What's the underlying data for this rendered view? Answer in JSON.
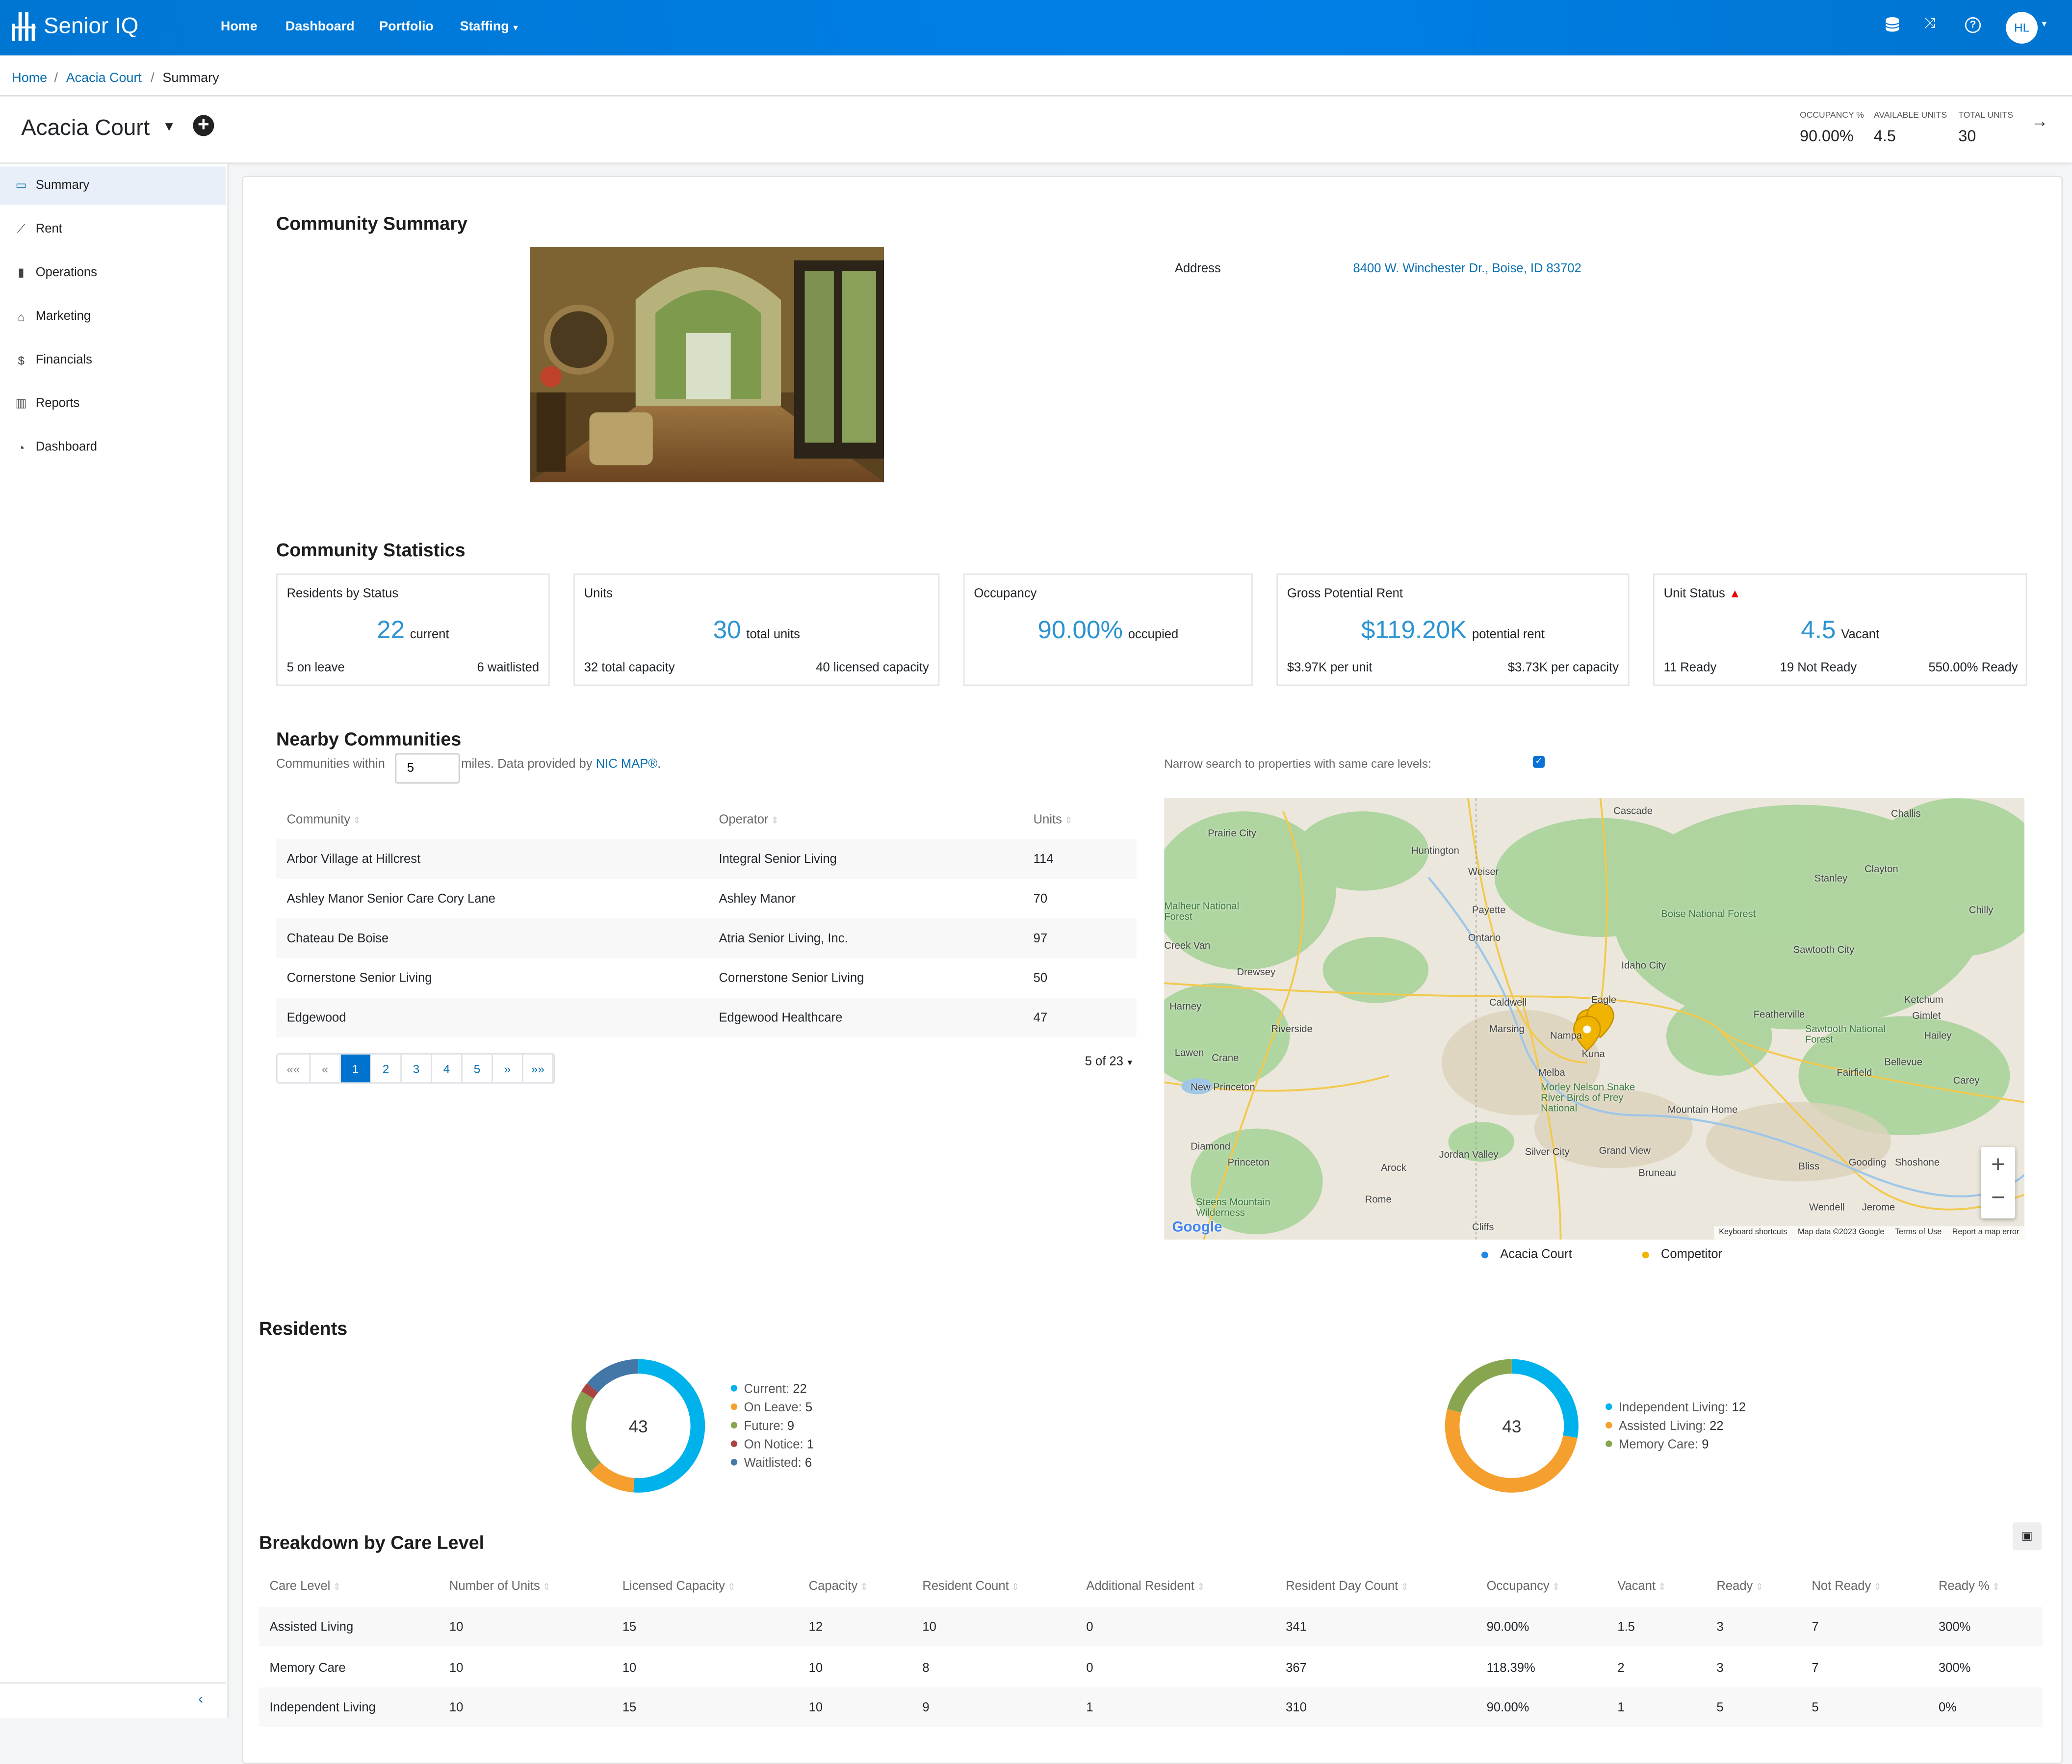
{
  "nav": {
    "brand": "Senior IQ",
    "links": [
      "Home",
      "Dashboard",
      "Portfolio",
      "Staffing"
    ],
    "user_initials": "HL",
    "color": "#0077d4"
  },
  "breadcrumb": [
    "Home",
    "Acacia Court",
    "Summary"
  ],
  "header": {
    "title": "Acacia Court",
    "kpis": [
      {
        "label": "OCCUPANCY %",
        "value": "90.00%"
      },
      {
        "label": "AVAILABLE UNITS",
        "value": "4.5"
      },
      {
        "label": "TOTAL UNITS",
        "value": "30"
      }
    ]
  },
  "sidebar": {
    "items": [
      {
        "label": "Summary",
        "icon": "id-card-icon"
      },
      {
        "label": "Rent",
        "icon": "line-chart-icon"
      },
      {
        "label": "Operations",
        "icon": "clipboard-icon"
      },
      {
        "label": "Marketing",
        "icon": "basket-icon"
      },
      {
        "label": "Financials",
        "icon": "dollar-icon"
      },
      {
        "label": "Reports",
        "icon": "bar-chart-icon"
      },
      {
        "label": "Dashboard",
        "icon": "gauge-icon"
      }
    ],
    "active": "Summary"
  },
  "summary": {
    "title": "Community Summary",
    "address_label": "Address",
    "address": "8400 W. Winchester Dr., Boise, ID 83702"
  },
  "statistics": {
    "title": "Community Statistics",
    "cards": [
      {
        "title": "Residents by Status",
        "value": "22",
        "unit": "current",
        "bottom": [
          "5 on leave",
          "6 waitlisted"
        ]
      },
      {
        "title": "Units",
        "value": "30",
        "unit": "total units",
        "bottom": [
          "32 total capacity",
          "40 licensed capacity"
        ]
      },
      {
        "title": "Occupancy",
        "value": "90.00%",
        "unit": "occupied",
        "bottom": []
      },
      {
        "title": "Gross Potential Rent",
        "value": "$119.20K",
        "unit": "potential rent",
        "bottom": [
          "$3.97K per unit",
          "$3.73K per capacity"
        ]
      },
      {
        "title": "Unit Status",
        "value": "4.5",
        "unit": "Vacant",
        "bottom": [
          "11 Ready",
          "19 Not Ready",
          "550.00% Ready"
        ],
        "warning": true
      }
    ]
  },
  "nearby": {
    "title": "Nearby Communities",
    "within_prefix": "Communities within",
    "radius": "5",
    "within_suffix": "miles. Data provided by",
    "provider": "NIC MAP®",
    "narrow_label": "Narrow search to properties with same care levels:",
    "narrow_checked": true,
    "columns": [
      "Community",
      "Operator",
      "Units"
    ],
    "rows": [
      [
        "Arbor Village at Hillcrest",
        "Integral Senior Living",
        "114"
      ],
      [
        "Ashley Manor Senior Care Cory Lane",
        "Ashley Manor",
        "70"
      ],
      [
        "Chateau De Boise",
        "Atria Senior Living, Inc.",
        "97"
      ],
      [
        "Cornerstone Senior Living",
        "Cornerstone Senior Living",
        "50"
      ],
      [
        "Edgewood",
        "Edgewood Healthcare",
        "47"
      ]
    ],
    "pagination": {
      "pages": [
        "««",
        "«",
        "1",
        "2",
        "3",
        "4",
        "5",
        "»",
        "»»"
      ],
      "current": "1",
      "page_size": "5 of 23"
    },
    "map": {
      "labels": [
        "Cascade",
        "Challis",
        "Prairie City",
        "Huntington",
        "Weiser",
        "Payette",
        "Ontario",
        "Malheur National Forest",
        "Creek Van",
        "Drewsey",
        "Harney",
        "Riverside",
        "Lawen",
        "Crane",
        "New Princeton",
        "Diamond",
        "Princeton",
        "Steens Mountain Wilderness",
        "Arock",
        "Rome",
        "Jordan Valley",
        "Silver City",
        "Grand View",
        "Bruneau",
        "Mountain Home",
        "Melba",
        "Marsing",
        "Caldwell",
        "Nampa",
        "Kuna",
        "Eagle",
        "Morley Nelson Snake River Birds of Prey National",
        "Idaho City",
        "Boise National Forest",
        "Stanley",
        "Clayton",
        "Chilly",
        "Sawtooth City",
        "Featherville",
        "Ketchum",
        "Gimlet",
        "Hailey",
        "Bellevue",
        "Carey",
        "Fairfield",
        "Sawtooth National Forest",
        "Bliss",
        "Gooding",
        "Shoshone",
        "Wendell",
        "Jerome",
        "Cliffs"
      ],
      "footer": [
        "Keyboard shortcuts",
        "Map data ©2023 Google",
        "Terms of Use",
        "Report a map error"
      ],
      "legend": [
        {
          "label": "Acacia Court",
          "color": "#1e88e5"
        },
        {
          "label": "Competitor",
          "color": "#f0b400"
        }
      ]
    }
  },
  "residents": {
    "title": "Residents",
    "chart_data": [
      {
        "type": "pie",
        "total": "43",
        "series": [
          {
            "name": "Current",
            "value": 22,
            "color": "#00b2ec"
          },
          {
            "name": "On Leave",
            "value": 5,
            "color": "#f5a02e"
          },
          {
            "name": "Future",
            "value": 9,
            "color": "#88a550"
          },
          {
            "name": "On Notice",
            "value": 1,
            "color": "#a94442"
          },
          {
            "name": "Waitlisted",
            "value": 6,
            "color": "#4277a7"
          }
        ]
      },
      {
        "type": "pie",
        "total": "43",
        "series": [
          {
            "name": "Independent Living",
            "value": 12,
            "color": "#00b2ec"
          },
          {
            "name": "Assisted Living",
            "value": 22,
            "color": "#f5a02e"
          },
          {
            "name": "Memory Care",
            "value": 9,
            "color": "#88a550"
          }
        ]
      }
    ]
  },
  "breakdown": {
    "title": "Breakdown by Care Level",
    "columns": [
      "Care Level",
      "Number of Units",
      "Licensed Capacity",
      "Capacity",
      "Resident Count",
      "Additional Resident",
      "Resident Day Count",
      "Occupancy",
      "Vacant",
      "Ready",
      "Not Ready",
      "Ready %"
    ],
    "rows": [
      [
        "Assisted Living",
        "10",
        "15",
        "12",
        "10",
        "0",
        "341",
        "90.00%",
        "1.5",
        "3",
        "7",
        "300%"
      ],
      [
        "Memory Care",
        "10",
        "10",
        "10",
        "8",
        "0",
        "367",
        "118.39%",
        "2",
        "3",
        "7",
        "300%"
      ],
      [
        "Independent Living",
        "10",
        "15",
        "10",
        "9",
        "1",
        "310",
        "90.00%",
        "1",
        "5",
        "5",
        "0%"
      ]
    ]
  }
}
